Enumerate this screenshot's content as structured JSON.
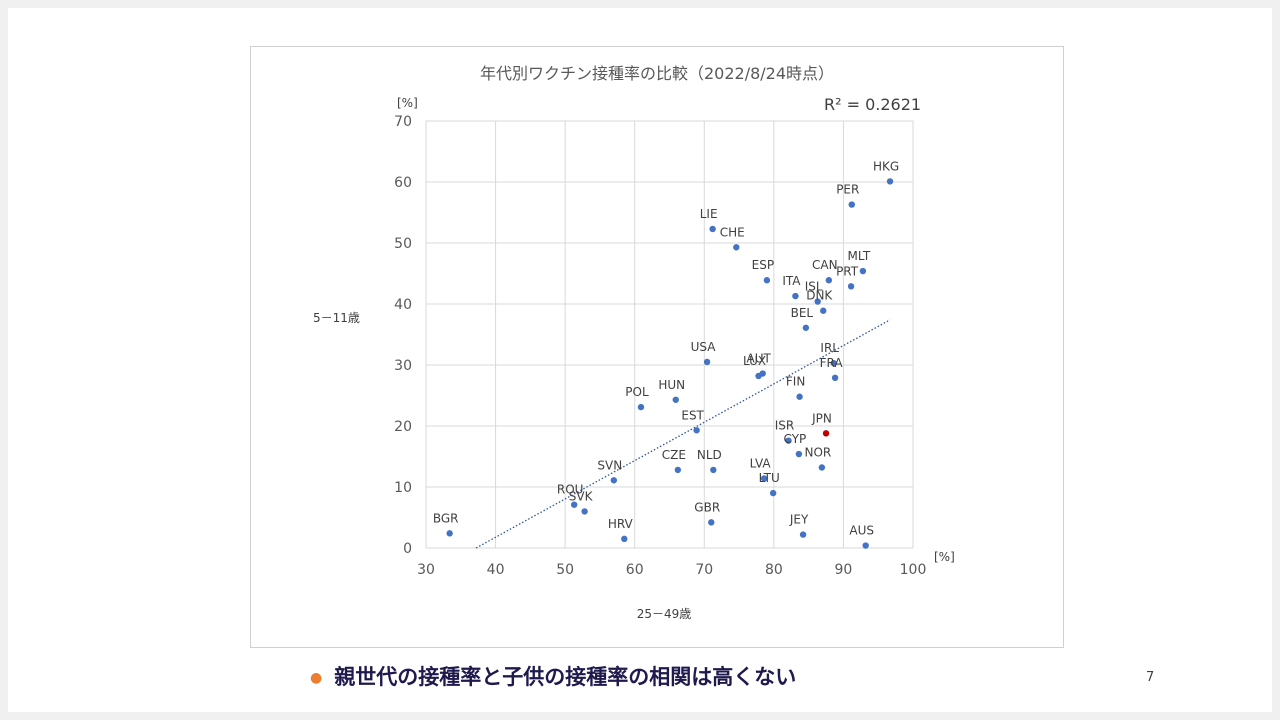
{
  "slide": {
    "bullet_text": "親世代の接種率と子供の接種率の相関は高くない",
    "page_number": "7",
    "accent_color": "#ed7d31",
    "text_color": "#1f1a4d"
  },
  "chart_data": {
    "type": "scatter",
    "title": "年代別ワクチン接種率の比較（2022/8/24時点）",
    "xlabel": "25－49歳",
    "ylabel": "5－11歳",
    "x_unit": "[%]",
    "y_unit": "[%]",
    "xlim": [
      30,
      100
    ],
    "ylim": [
      0,
      70
    ],
    "xticks": [
      30,
      40,
      50,
      60,
      70,
      80,
      90,
      100
    ],
    "yticks": [
      0,
      10,
      20,
      30,
      40,
      50,
      60,
      70
    ],
    "grid": true,
    "r_squared_label": "R² = 0.2621",
    "trendline": {
      "type": "linear",
      "x": [
        37.2,
        96.7
      ],
      "y": [
        0,
        37.4
      ],
      "style": "dotted"
    },
    "point_color": "#4472c4",
    "highlight_color": "#c00000",
    "points": [
      {
        "label": "BGR",
        "x": 33.4,
        "y": 2.4
      },
      {
        "label": "HRV",
        "x": 58.5,
        "y": 1.5
      },
      {
        "label": "SVK",
        "x": 52.8,
        "y": 6.0
      },
      {
        "label": "ROU",
        "x": 51.3,
        "y": 7.1
      },
      {
        "label": "SVN",
        "x": 57.0,
        "y": 11.1
      },
      {
        "label": "POL",
        "x": 60.9,
        "y": 23.1
      },
      {
        "label": "HUN",
        "x": 65.9,
        "y": 24.3
      },
      {
        "label": "CZE",
        "x": 66.2,
        "y": 12.8
      },
      {
        "label": "EST",
        "x": 68.9,
        "y": 19.3
      },
      {
        "label": "USA",
        "x": 70.4,
        "y": 30.5
      },
      {
        "label": "GBR",
        "x": 71.0,
        "y": 4.2
      },
      {
        "label": "NLD",
        "x": 71.3,
        "y": 12.8
      },
      {
        "label": "LIE",
        "x": 71.2,
        "y": 52.3
      },
      {
        "label": "CHE",
        "x": 74.6,
        "y": 49.3
      },
      {
        "label": "LUX",
        "x": 77.8,
        "y": 28.2
      },
      {
        "label": "AUT",
        "x": 78.4,
        "y": 28.6
      },
      {
        "label": "LVA",
        "x": 78.6,
        "y": 11.4
      },
      {
        "label": "ESP",
        "x": 79.0,
        "y": 43.9
      },
      {
        "label": "LTU",
        "x": 79.9,
        "y": 9.0
      },
      {
        "label": "ISR",
        "x": 82.1,
        "y": 17.6
      },
      {
        "label": "ITA",
        "x": 83.1,
        "y": 41.3
      },
      {
        "label": "CYP",
        "x": 83.6,
        "y": 15.4
      },
      {
        "label": "FIN",
        "x": 83.7,
        "y": 24.8
      },
      {
        "label": "JEY",
        "x": 84.2,
        "y": 2.2
      },
      {
        "label": "BEL",
        "x": 84.6,
        "y": 36.1
      },
      {
        "label": "ISL",
        "x": 86.3,
        "y": 40.4
      },
      {
        "label": "NOR",
        "x": 86.9,
        "y": 13.2
      },
      {
        "label": "DNK",
        "x": 87.1,
        "y": 38.9
      },
      {
        "label": "JPN",
        "x": 87.5,
        "y": 18.8,
        "highlight": true
      },
      {
        "label": "CAN",
        "x": 87.9,
        "y": 43.9
      },
      {
        "label": "IRL",
        "x": 88.6,
        "y": 30.3
      },
      {
        "label": "FRA",
        "x": 88.8,
        "y": 27.9
      },
      {
        "label": "PRT",
        "x": 91.1,
        "y": 42.9
      },
      {
        "label": "PER",
        "x": 91.2,
        "y": 56.3
      },
      {
        "label": "MLT",
        "x": 92.8,
        "y": 45.4
      },
      {
        "label": "AUS",
        "x": 93.2,
        "y": 0.4
      },
      {
        "label": "HKG",
        "x": 96.7,
        "y": 60.1
      }
    ]
  }
}
